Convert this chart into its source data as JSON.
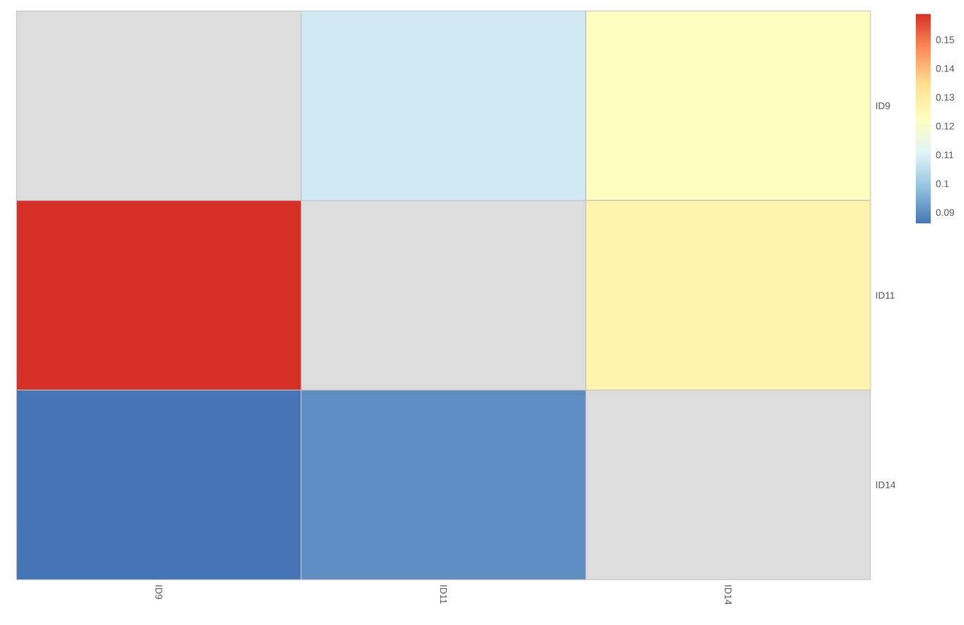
{
  "chart_data": {
    "type": "heatmap",
    "categories": [
      "ID9",
      "ID11",
      "ID14"
    ],
    "y_categories": [
      "ID9",
      "ID11",
      "ID14"
    ],
    "cells": [
      [
        null,
        0.108,
        0.122
      ],
      [
        0.159,
        null,
        0.127
      ],
      [
        0.086,
        0.09,
        null
      ]
    ],
    "clim": [
      0.086,
      0.159
    ],
    "cticks": [
      0.09,
      0.1,
      0.11,
      0.12,
      0.13,
      0.14,
      0.15
    ]
  }
}
